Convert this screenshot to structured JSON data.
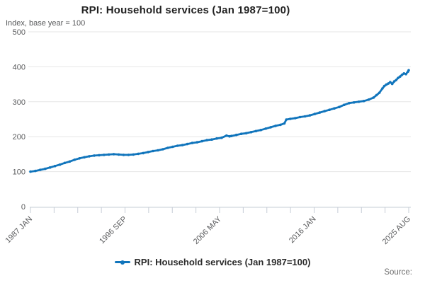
{
  "title": "RPI: Household services (Jan 1987=100)",
  "subtitle": "Index, base year = 100",
  "source_label": "Source:",
  "legend": {
    "items": [
      {
        "label": "RPI: Household services (Jan 1987=100)",
        "color": "#1175bc"
      }
    ]
  },
  "colors": {
    "series": "#1175bc",
    "grid": "#e6e6e6",
    "axis": "#c6ccd6",
    "tick_text": "#58595b",
    "title_text": "#222222"
  },
  "chart_data": {
    "type": "line",
    "title": "RPI: Household services (Jan 1987=100)",
    "subtitle": "Index, base year = 100",
    "xlabel": "",
    "ylabel": "Index, base year = 100",
    "ylim": [
      0,
      500
    ],
    "y_ticks": [
      0,
      100,
      200,
      300,
      400,
      500
    ],
    "x_tick_labels": [
      "1987 JAN",
      "1996 SEP",
      "2006 MAY",
      "2016 JAN",
      "2025 AUG"
    ],
    "x_tick_total": 17,
    "x_label_every": 4,
    "xlim_decimal_years": [
      1987.0,
      2025.583
    ],
    "grid": "horizontal",
    "legend_position": "bottom",
    "series": [
      {
        "name": "RPI: Household services (Jan 1987=100)",
        "color": "#1175bc",
        "points": [
          [
            1987.0,
            100
          ],
          [
            1987.5,
            102
          ],
          [
            1988.0,
            105
          ],
          [
            1988.5,
            108
          ],
          [
            1989.0,
            112
          ],
          [
            1989.5,
            116
          ],
          [
            1990.0,
            120
          ],
          [
            1990.5,
            125
          ],
          [
            1991.0,
            129
          ],
          [
            1991.5,
            134
          ],
          [
            1992.0,
            138
          ],
          [
            1992.5,
            141
          ],
          [
            1993.0,
            144
          ],
          [
            1993.5,
            146
          ],
          [
            1994.0,
            147
          ],
          [
            1994.5,
            148
          ],
          [
            1995.0,
            149
          ],
          [
            1995.5,
            150
          ],
          [
            1996.0,
            149
          ],
          [
            1996.5,
            148
          ],
          [
            1997.0,
            148
          ],
          [
            1997.5,
            149
          ],
          [
            1998.0,
            151
          ],
          [
            1998.5,
            153
          ],
          [
            1999.0,
            156
          ],
          [
            1999.5,
            159
          ],
          [
            2000.0,
            161
          ],
          [
            2000.5,
            164
          ],
          [
            2001.0,
            168
          ],
          [
            2001.5,
            171
          ],
          [
            2002.0,
            174
          ],
          [
            2002.5,
            176
          ],
          [
            2003.0,
            179
          ],
          [
            2003.5,
            182
          ],
          [
            2004.0,
            184
          ],
          [
            2004.5,
            187
          ],
          [
            2005.0,
            190
          ],
          [
            2005.5,
            192
          ],
          [
            2006.0,
            195
          ],
          [
            2006.5,
            197
          ],
          [
            2007.0,
            203
          ],
          [
            2007.3,
            201
          ],
          [
            2007.5,
            202
          ],
          [
            2008.0,
            205
          ],
          [
            2008.5,
            208
          ],
          [
            2009.0,
            210
          ],
          [
            2009.5,
            213
          ],
          [
            2010.0,
            216
          ],
          [
            2010.5,
            219
          ],
          [
            2011.0,
            223
          ],
          [
            2011.5,
            227
          ],
          [
            2012.0,
            231
          ],
          [
            2012.5,
            234
          ],
          [
            2012.9,
            238
          ],
          [
            2013.1,
            249
          ],
          [
            2013.5,
            251
          ],
          [
            2014.0,
            253
          ],
          [
            2014.5,
            256
          ],
          [
            2015.0,
            258
          ],
          [
            2015.5,
            261
          ],
          [
            2016.0,
            265
          ],
          [
            2016.5,
            269
          ],
          [
            2017.0,
            273
          ],
          [
            2017.5,
            277
          ],
          [
            2018.0,
            281
          ],
          [
            2018.5,
            285
          ],
          [
            2019.0,
            291
          ],
          [
            2019.5,
            296
          ],
          [
            2020.0,
            298
          ],
          [
            2020.5,
            300
          ],
          [
            2021.0,
            302
          ],
          [
            2021.5,
            306
          ],
          [
            2022.0,
            312
          ],
          [
            2022.3,
            319
          ],
          [
            2022.6,
            326
          ],
          [
            2022.9,
            338
          ],
          [
            2023.1,
            345
          ],
          [
            2023.3,
            349
          ],
          [
            2023.5,
            352
          ],
          [
            2023.7,
            356
          ],
          [
            2023.9,
            351
          ],
          [
            2024.1,
            358
          ],
          [
            2024.3,
            362
          ],
          [
            2024.5,
            368
          ],
          [
            2024.7,
            372
          ],
          [
            2024.9,
            377
          ],
          [
            2025.1,
            381
          ],
          [
            2025.3,
            379
          ],
          [
            2025.5,
            386
          ],
          [
            2025.583,
            390
          ]
        ]
      }
    ]
  }
}
